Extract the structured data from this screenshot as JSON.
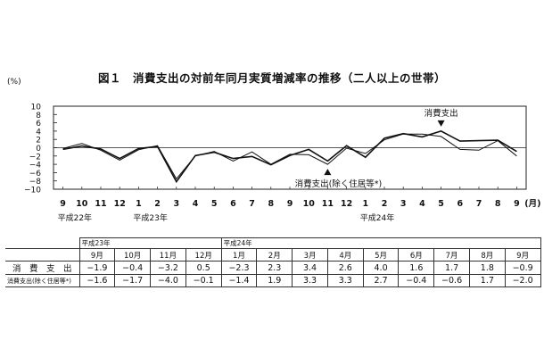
{
  "title": "図１　消費支出の対前年同月実質増減率の推移（二人以上の世帯）",
  "chart_data": {
    "type": "line",
    "title": "図１　消費支出の対前年同月実質増減率の推移（二人以上の世帯）",
    "ylabel": "(%)",
    "ylim": [
      -10,
      10
    ],
    "yticks": [
      10,
      8,
      6,
      4,
      2,
      0,
      -2,
      -4,
      -6,
      -8,
      -10
    ],
    "grid": false,
    "xtick_labels": [
      "9",
      "10",
      "11",
      "12",
      "1",
      "2",
      "3",
      "4",
      "5",
      "6",
      "7",
      "8",
      "9",
      "10",
      "11",
      "12",
      "1",
      "2",
      "3",
      "4",
      "5",
      "6",
      "7",
      "8",
      "9"
    ],
    "x_unit": "(月)",
    "era_labels": [
      "平成22年",
      "平成23年",
      "平成24年"
    ],
    "series": [
      {
        "name": "消費支出",
        "values": [
          -0.4,
          0.4,
          -0.3,
          -2.6,
          -0.2,
          0.3,
          -8.2,
          -1.9,
          -1.1,
          -2.6,
          -2.1,
          -4.1,
          -1.9,
          -0.4,
          -3.2,
          0.5,
          -2.3,
          2.3,
          3.4,
          2.6,
          4.0,
          1.6,
          1.7,
          1.8,
          -0.9
        ]
      },
      {
        "name": "消費支出(除く住居等*)",
        "values": [
          -0.2,
          1.0,
          -0.6,
          -3.0,
          -0.5,
          0.5,
          -7.5,
          -2.0,
          -0.9,
          -3.2,
          -1.0,
          -4.0,
          -1.6,
          -1.7,
          -4.0,
          -0.1,
          -1.4,
          1.9,
          3.3,
          3.3,
          2.7,
          -0.4,
          -0.6,
          1.7,
          -2.0
        ]
      }
    ],
    "annotations": [
      {
        "text": "消費支出",
        "series": 0,
        "index": 20
      },
      {
        "text": "消費支出(除く住居等*)",
        "series": 1,
        "index": 14
      }
    ]
  },
  "table": {
    "era_23": "平成23年",
    "era_24": "平成24年",
    "months": [
      "9月",
      "10月",
      "11月",
      "12月",
      "1月",
      "2月",
      "3月",
      "4月",
      "5月",
      "6月",
      "7月",
      "8月",
      "9月"
    ],
    "rows": [
      {
        "label": "消　費　支　出",
        "values": [
          "−1.9",
          "−0.4",
          "−3.2",
          "0.5",
          "−2.3",
          "2.3",
          "3.4",
          "2.6",
          "4.0",
          "1.6",
          "1.7",
          "1.8",
          "−0.9"
        ]
      },
      {
        "label": "消費支出(除く住居等*)",
        "values": [
          "−1.6",
          "−1.7",
          "−4.0",
          "−0.1",
          "−1.4",
          "1.9",
          "3.3",
          "3.3",
          "2.7",
          "−0.4",
          "−0.6",
          "1.7",
          "−2.0"
        ]
      }
    ]
  }
}
